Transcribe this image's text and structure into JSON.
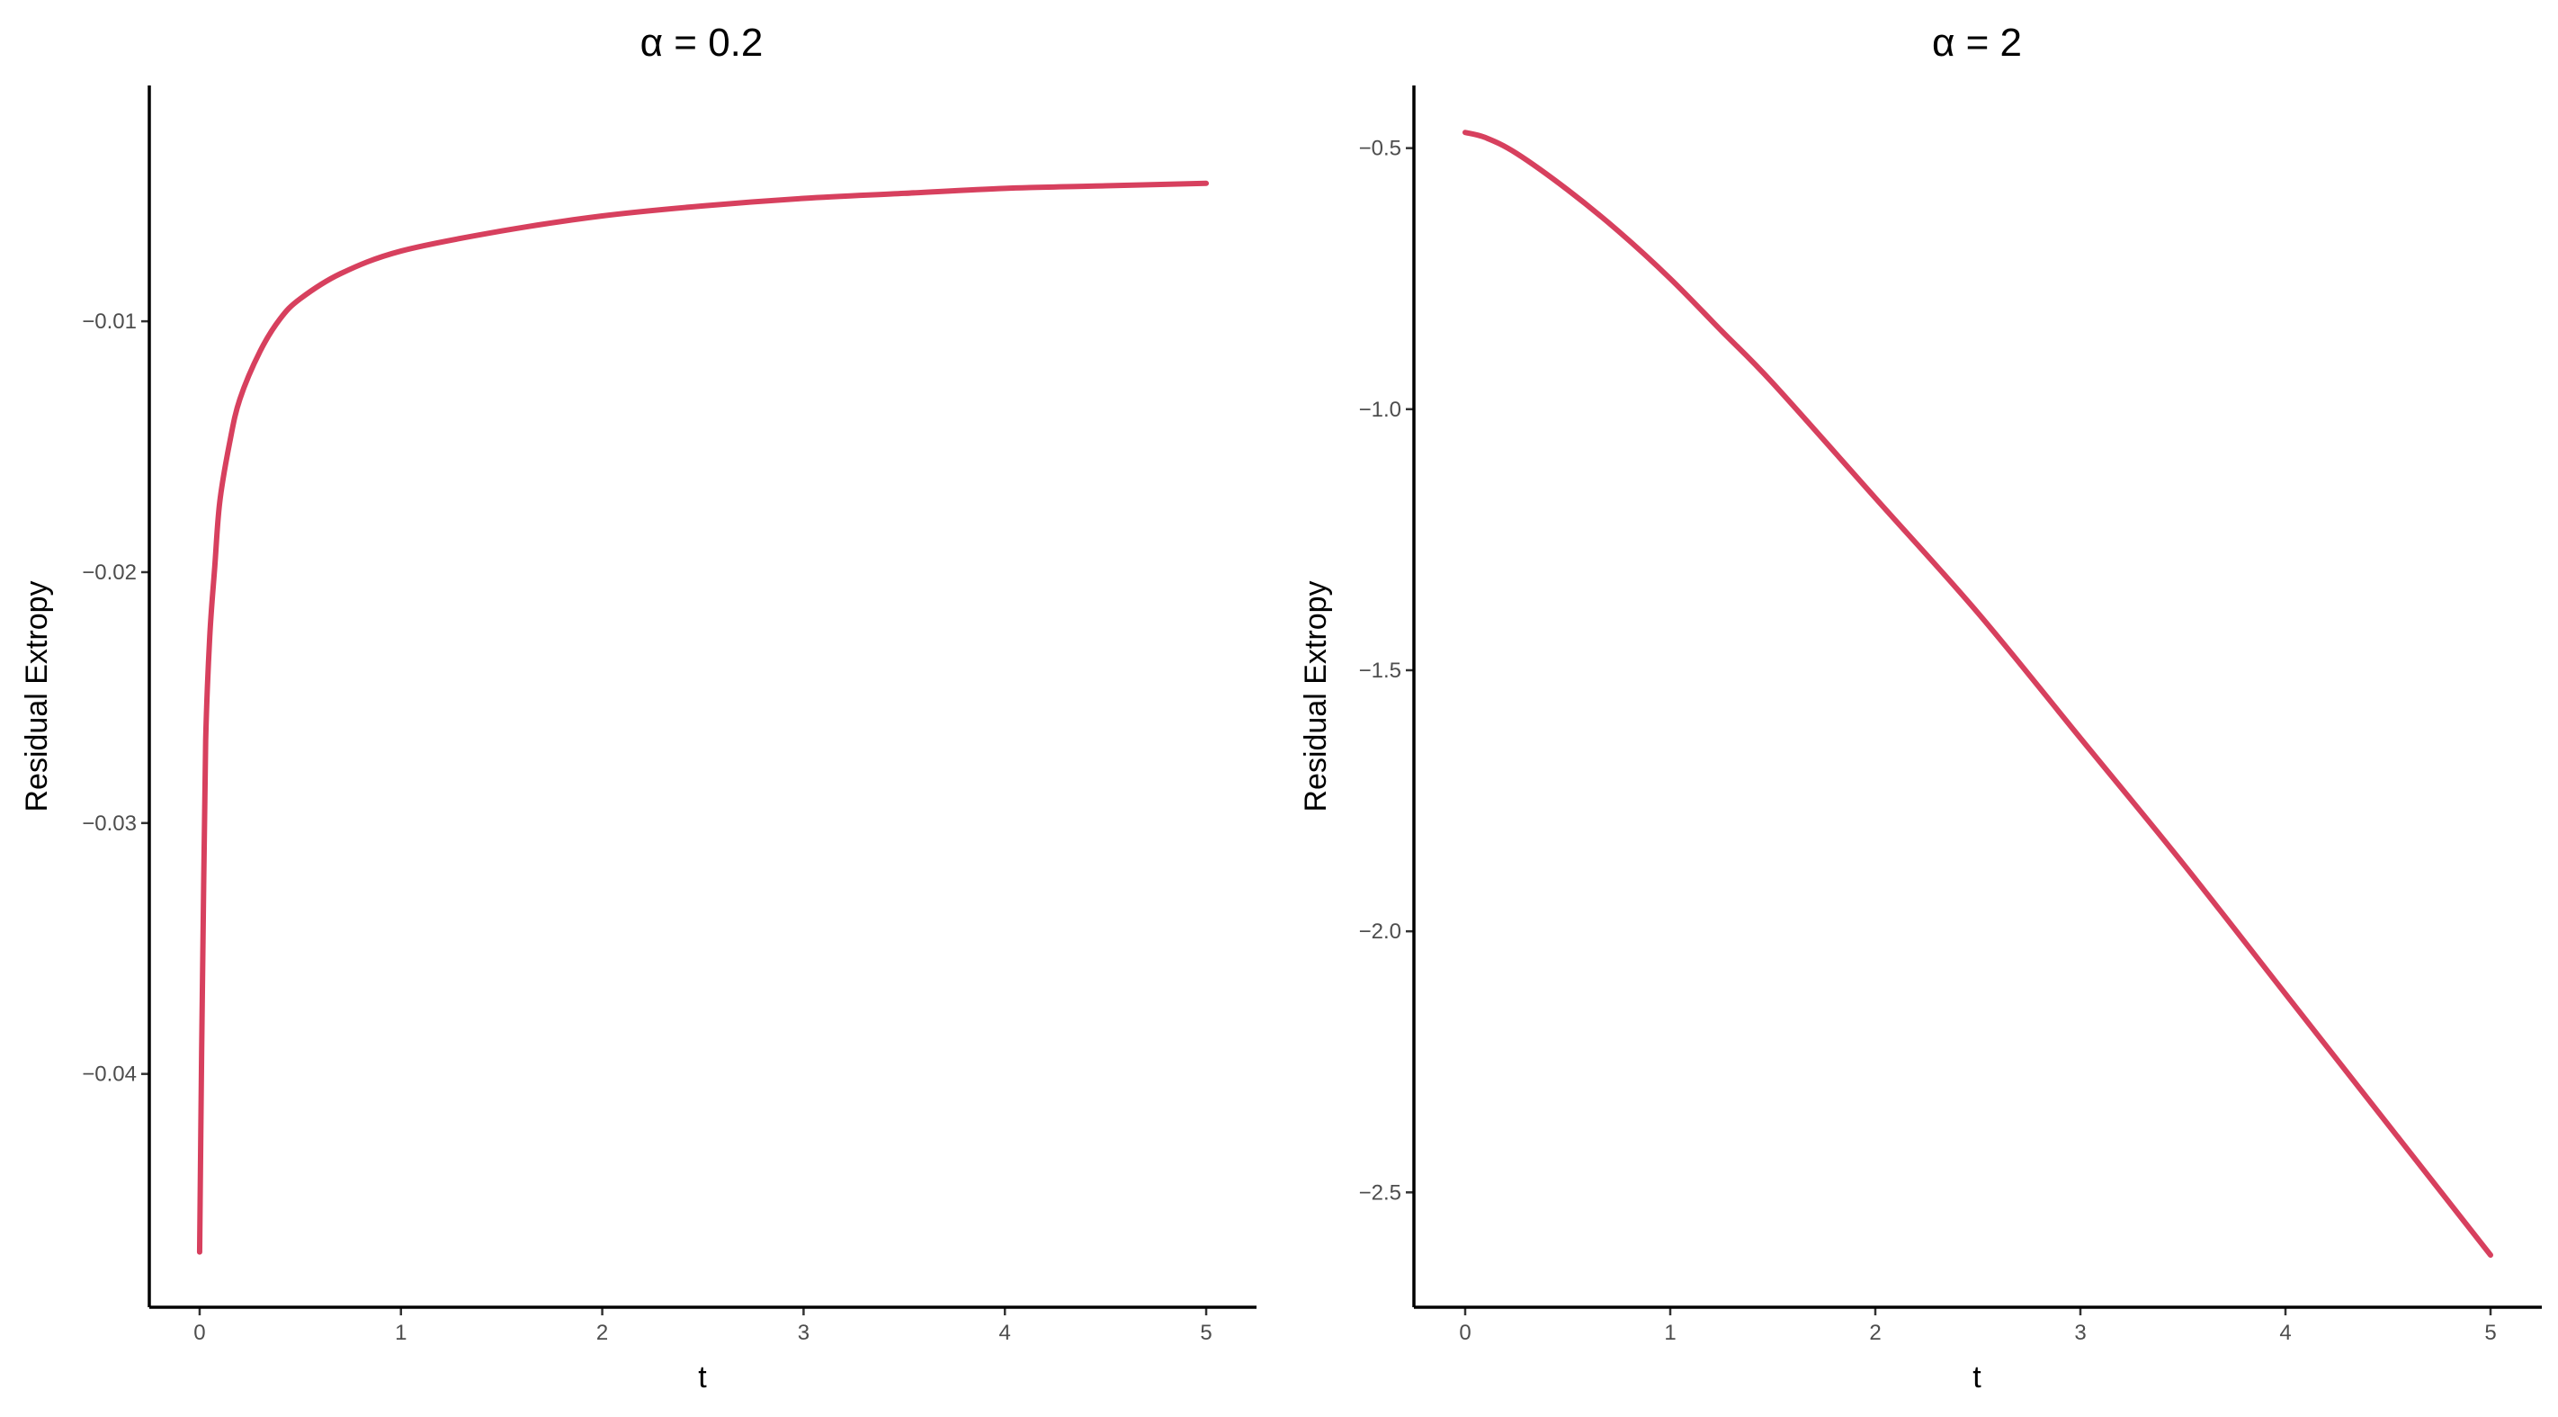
{
  "chart_data": [
    {
      "type": "line",
      "title": "α = 0.2",
      "xlabel": "t",
      "ylabel": "Residual Extropy",
      "xlim": [
        -0.25,
        5.25
      ],
      "ylim": [
        -0.0493,
        -0.0006
      ],
      "x_ticks": [
        0,
        1,
        2,
        3,
        4,
        5
      ],
      "y_ticks": [
        -0.04,
        -0.03,
        -0.02,
        -0.01
      ],
      "y_tick_labels": [
        "−0.04",
        "−0.03",
        "−0.02",
        "−0.01"
      ],
      "grid": false,
      "series": [
        {
          "color": "#d7405e",
          "x": [
            0.0,
            0.01,
            0.02,
            0.03,
            0.05,
            0.075,
            0.1,
            0.15,
            0.2,
            0.3,
            0.4,
            0.5,
            0.7,
            1.0,
            1.5,
            2.0,
            2.5,
            3.0,
            3.5,
            4.0,
            4.5,
            5.0
          ],
          "y": [
            -0.0471,
            -0.0391,
            -0.0325,
            -0.0267,
            -0.0226,
            -0.0198,
            -0.0172,
            -0.0148,
            -0.0131,
            -0.0112,
            -0.0099,
            -0.0091,
            -0.0081,
            -0.0072,
            -0.0064,
            -0.0058,
            -0.0054,
            -0.0051,
            -0.0049,
            -0.0047,
            -0.0046,
            -0.0045
          ]
        }
      ]
    },
    {
      "type": "line",
      "title": "α = 2",
      "xlabel": "t",
      "ylabel": "Residual Extropy",
      "xlim": [
        -0.25,
        5.25
      ],
      "ylim": [
        -2.72,
        -0.38
      ],
      "x_ticks": [
        0,
        1,
        2,
        3,
        4,
        5
      ],
      "y_ticks": [
        -2.5,
        -2.0,
        -1.5,
        -1.0,
        -0.5
      ],
      "y_tick_labels": [
        "−2.5",
        "−2.0",
        "−1.5",
        "−1.0",
        "−0.5"
      ],
      "grid": false,
      "series": [
        {
          "color": "#d7405e",
          "x": [
            0.0,
            0.1,
            0.25,
            0.5,
            0.75,
            1.0,
            1.25,
            1.5,
            2.0,
            2.5,
            3.0,
            3.5,
            4.0,
            4.5,
            5.0
          ],
          "y": [
            -0.47,
            -0.48,
            -0.51,
            -0.58,
            -0.66,
            -0.75,
            -0.85,
            -0.95,
            -1.17,
            -1.39,
            -1.63,
            -1.87,
            -2.12,
            -2.37,
            -2.62
          ]
        }
      ]
    }
  ]
}
